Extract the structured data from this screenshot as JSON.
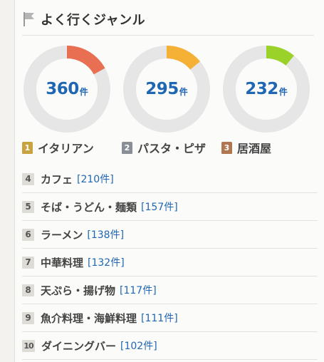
{
  "title": "よく行くジャンル",
  "colors": {
    "track": "#e6e6e6",
    "accent_red": "#e86f52",
    "accent_orange": "#f4b136",
    "accent_green": "#9bd22a",
    "count_blue": "#1f66b3"
  },
  "donuts": [
    {
      "count": "360",
      "unit": "件",
      "fraction": 0.17,
      "color": "#e86f52"
    },
    {
      "count": "295",
      "unit": "件",
      "fraction": 0.14,
      "color": "#f4b136"
    },
    {
      "count": "232",
      "unit": "件",
      "fraction": 0.11,
      "color": "#9bd22a"
    }
  ],
  "top3": [
    {
      "rank": "1",
      "label": "イタリアン"
    },
    {
      "rank": "2",
      "label": "パスタ・ピザ"
    },
    {
      "rank": "3",
      "label": "居酒屋"
    }
  ],
  "list": [
    {
      "rank": "4",
      "genre": "カフェ",
      "count": "[210件]"
    },
    {
      "rank": "5",
      "genre": "そば・うどん・麺類",
      "count": "[157件]"
    },
    {
      "rank": "6",
      "genre": "ラーメン",
      "count": "[138件]"
    },
    {
      "rank": "7",
      "genre": "中華料理",
      "count": "[132件]"
    },
    {
      "rank": "8",
      "genre": "天ぷら・揚げ物",
      "count": "[117件]"
    },
    {
      "rank": "9",
      "genre": "魚介料理・海鮮料理",
      "count": "[111件]"
    },
    {
      "rank": "10",
      "genre": "ダイニングバー",
      "count": "[102件]"
    }
  ]
}
